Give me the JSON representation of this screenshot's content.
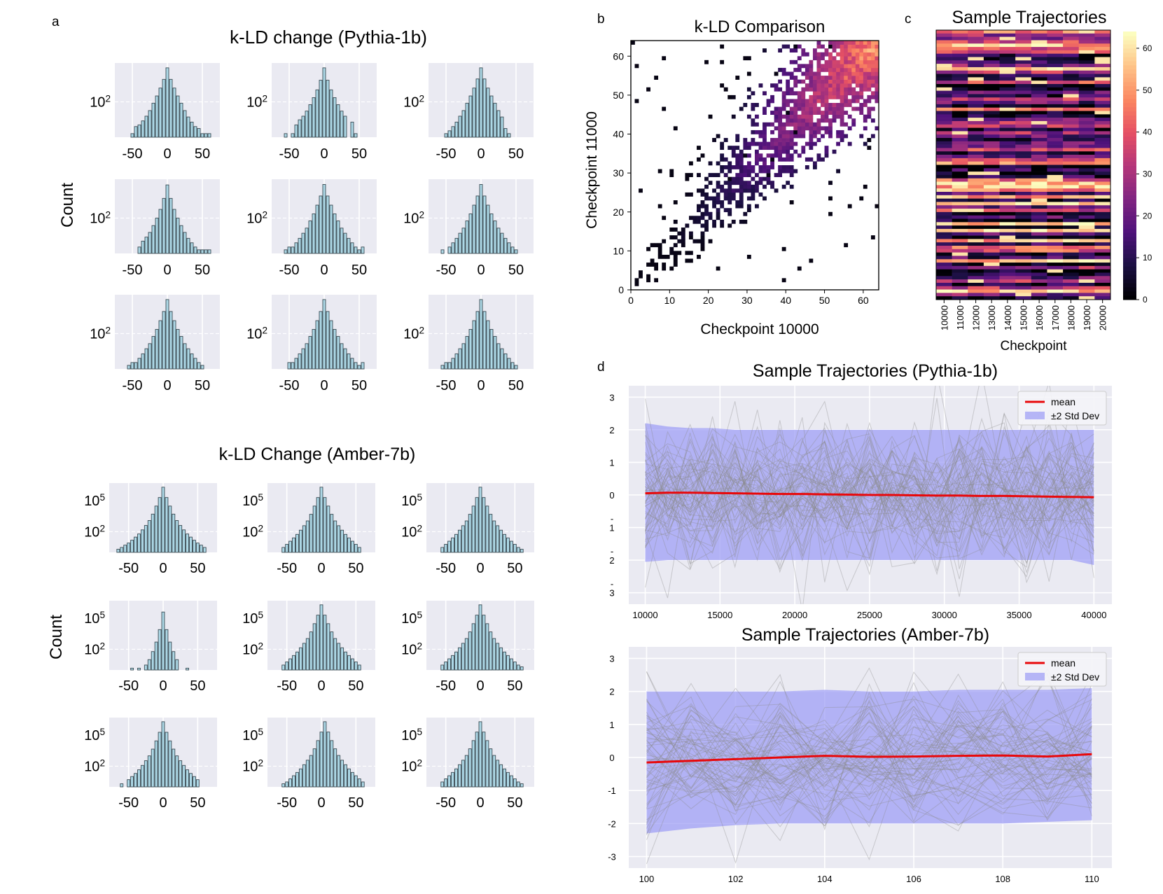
{
  "panel_letters": {
    "a": "a",
    "b": "b",
    "c": "c",
    "d": "d"
  },
  "colors": {
    "plot_bg": "#eaeaf2",
    "bar_fill": "#add8e6",
    "bar_edge": "#3a4a52",
    "mean_line": "#e8080a",
    "band": "#9c9cf5",
    "trajectory": "#8c8c8c"
  },
  "chart_data": [
    {
      "id": "pythia_hist",
      "type": "bar",
      "title": "k-LD change (Pythia-1b)",
      "ylabel": "Count",
      "yscale": "log",
      "xticks": [
        "-50",
        "0",
        "50"
      ],
      "ytick_labels": [
        "10^2"
      ],
      "bin_centers": [
        -60,
        -55,
        -50,
        -45,
        -40,
        -35,
        -30,
        -25,
        -20,
        -15,
        -10,
        -5,
        0,
        5,
        10,
        15,
        20,
        25,
        30,
        35,
        40,
        45,
        50,
        55,
        60
      ],
      "grid_layout": "3x3",
      "panels": [
        {
          "counts": [
            0,
            0,
            8,
            14,
            16,
            22,
            32,
            50,
            90,
            160,
            300,
            600,
            1500,
            600,
            300,
            160,
            90,
            50,
            30,
            20,
            14,
            12,
            8,
            8,
            8
          ]
        },
        {
          "counts": [
            0,
            8,
            0,
            8,
            16,
            24,
            32,
            48,
            80,
            140,
            260,
            560,
            1500,
            560,
            260,
            140,
            80,
            48,
            32,
            0,
            20,
            8,
            0,
            0,
            0
          ]
        },
        {
          "counts": [
            0,
            0,
            8,
            10,
            14,
            20,
            32,
            50,
            90,
            160,
            300,
            620,
            1500,
            620,
            300,
            160,
            90,
            50,
            30,
            12,
            8,
            0,
            0,
            0,
            0
          ]
        },
        {
          "counts": [
            0,
            0,
            0,
            0,
            10,
            16,
            22,
            32,
            55,
            100,
            200,
            480,
            1400,
            480,
            200,
            100,
            55,
            32,
            20,
            14,
            10,
            8,
            8,
            8,
            8
          ]
        },
        {
          "counts": [
            0,
            8,
            10,
            10,
            14,
            20,
            30,
            45,
            80,
            140,
            280,
            580,
            1450,
            580,
            280,
            140,
            80,
            45,
            30,
            20,
            14,
            10,
            8,
            10,
            0
          ]
        },
        {
          "counts": [
            0,
            8,
            0,
            10,
            14,
            20,
            30,
            45,
            80,
            140,
            280,
            580,
            1450,
            580,
            280,
            140,
            80,
            45,
            30,
            20,
            14,
            10,
            8,
            0,
            0
          ]
        },
        {
          "counts": [
            0,
            8,
            10,
            10,
            14,
            20,
            30,
            45,
            80,
            140,
            280,
            580,
            1500,
            580,
            280,
            140,
            80,
            45,
            30,
            20,
            14,
            10,
            8,
            0,
            0
          ]
        },
        {
          "counts": [
            0,
            0,
            10,
            10,
            14,
            20,
            30,
            45,
            80,
            140,
            280,
            580,
            1500,
            580,
            280,
            140,
            80,
            45,
            30,
            20,
            14,
            10,
            8,
            10,
            0
          ]
        },
        {
          "counts": [
            0,
            8,
            10,
            10,
            14,
            20,
            30,
            45,
            80,
            140,
            280,
            580,
            1500,
            580,
            280,
            140,
            80,
            45,
            30,
            20,
            14,
            10,
            8,
            0,
            0
          ]
        }
      ]
    },
    {
      "id": "amber_hist",
      "type": "bar",
      "title": "k-LD Change (Amber-7b)",
      "ylabel": "Count",
      "yscale": "log",
      "xticks": [
        "-50",
        "0",
        "50"
      ],
      "ytick_labels": [
        "10^5",
        "10^2"
      ],
      "bin_centers": [
        -65,
        -60,
        -55,
        -50,
        -45,
        -40,
        -35,
        -30,
        -25,
        -20,
        -15,
        -10,
        -5,
        0,
        5,
        10,
        15,
        20,
        25,
        30,
        35,
        40,
        45,
        50,
        55,
        60,
        65
      ],
      "grid_layout": "3x3",
      "panels": [
        {
          "counts": [
            2,
            3,
            5,
            8,
            15,
            30,
            60,
            150,
            400,
            1200,
            5000,
            30000,
            200000,
            2000000,
            200000,
            30000,
            5000,
            1200,
            400,
            150,
            60,
            30,
            15,
            8,
            5,
            3,
            0
          ]
        },
        {
          "counts": [
            0,
            0,
            3,
            6,
            12,
            25,
            55,
            140,
            380,
            1100,
            4800,
            30000,
            200000,
            2000000,
            200000,
            30000,
            4800,
            1100,
            380,
            140,
            55,
            25,
            12,
            6,
            3,
            0,
            0
          ]
        },
        {
          "counts": [
            0,
            0,
            3,
            6,
            12,
            25,
            55,
            140,
            380,
            1100,
            4800,
            30000,
            200000,
            2000000,
            200000,
            30000,
            4800,
            1100,
            380,
            140,
            55,
            25,
            12,
            6,
            3,
            2,
            0
          ]
        },
        {
          "counts": [
            0,
            0,
            0,
            0,
            1.5,
            0,
            1.5,
            0,
            3,
            10,
            60,
            500,
            8000,
            400000,
            8000,
            500,
            60,
            10,
            0,
            0,
            1.5,
            0,
            0,
            0,
            0,
            0,
            0
          ]
        },
        {
          "counts": [
            0,
            0,
            3,
            6,
            12,
            25,
            55,
            140,
            380,
            1100,
            4800,
            30000,
            200000,
            2000000,
            200000,
            30000,
            4800,
            1100,
            380,
            140,
            55,
            25,
            12,
            6,
            3,
            0,
            0
          ]
        },
        {
          "counts": [
            0,
            0,
            3,
            6,
            12,
            25,
            55,
            140,
            380,
            1100,
            4800,
            30000,
            200000,
            2000000,
            200000,
            30000,
            4800,
            1100,
            380,
            140,
            55,
            25,
            12,
            6,
            3,
            2,
            0
          ]
        },
        {
          "counts": [
            0,
            2,
            0,
            5,
            10,
            20,
            45,
            120,
            340,
            1000,
            4500,
            28000,
            190000,
            2000000,
            190000,
            28000,
            4500,
            1000,
            340,
            120,
            45,
            20,
            10,
            5,
            0,
            0,
            0
          ]
        },
        {
          "counts": [
            0,
            0,
            2,
            3,
            6,
            12,
            25,
            55,
            140,
            380,
            1100,
            4800,
            30000,
            200000,
            2000000,
            200000,
            30000,
            4800,
            1100,
            380,
            140,
            55,
            25,
            12,
            6,
            3,
            0
          ]
        },
        {
          "counts": [
            0,
            0,
            3,
            6,
            12,
            25,
            55,
            140,
            380,
            1100,
            4800,
            30000,
            200000,
            2000000,
            200000,
            30000,
            4800,
            1100,
            380,
            140,
            55,
            25,
            12,
            6,
            3,
            2,
            0
          ]
        }
      ]
    },
    {
      "id": "kld_comparison",
      "type": "heatmap",
      "title": "k-LD Comparison",
      "xlabel": "Checkpoint 10000",
      "ylabel": "Checkpoint 11000",
      "xlim": [
        0,
        64
      ],
      "ylim": [
        0,
        64
      ],
      "xticks": [
        0,
        10,
        20,
        30,
        40,
        50,
        60
      ],
      "yticks": [
        0,
        10,
        20,
        30,
        40,
        50,
        60
      ],
      "description_values": "2D count histogram concentrated along the diagonal; densest near (60,60)"
    },
    {
      "id": "sample_trajectories_heatmap",
      "type": "heatmap",
      "title": "Sample Trajectories",
      "xlabel": "Checkpoint",
      "categories": [
        "10000",
        "11000",
        "12000",
        "13000",
        "14000",
        "15000",
        "16000",
        "17000",
        "18000",
        "19000",
        "20000"
      ],
      "colorbar_ticks": [
        0,
        10,
        20,
        30,
        40,
        50,
        60
      ],
      "colorbar_range": [
        0,
        64
      ],
      "rows": 80
    },
    {
      "id": "pythia_trajectories",
      "type": "line",
      "title": "Sample Trajectories (Pythia-1b)",
      "x": [
        10000,
        11500,
        13000,
        14500,
        16000,
        17500,
        19000,
        20500,
        22000,
        23500,
        25000,
        26500,
        28000,
        29500,
        31000,
        32500,
        34000,
        35500,
        37000,
        38500,
        40000
      ],
      "xticks": [
        "10000",
        "15000",
        "20000",
        "25000",
        "30000",
        "35000",
        "40000"
      ],
      "yticks": [
        "3",
        "2",
        "1",
        "0",
        "-\n1",
        "-\n2",
        "-\n3"
      ],
      "ylim": [
        -3.35,
        3.35
      ],
      "xlim": [
        8900,
        41200
      ],
      "series": [
        {
          "name": "mean",
          "values": [
            0.05,
            0.07,
            0.07,
            0.06,
            0.05,
            0.04,
            0.03,
            0.03,
            0.02,
            0.01,
            0.0,
            0.0,
            -0.01,
            -0.02,
            -0.02,
            -0.03,
            -0.03,
            -0.04,
            -0.05,
            -0.06,
            -0.07
          ]
        },
        {
          "name": "±2 Std Dev",
          "upper": [
            2.2,
            2.1,
            2.05,
            2.05,
            2.0,
            2.0,
            2.0,
            2.0,
            2.0,
            2.0,
            2.0,
            2.0,
            2.0,
            2.0,
            2.0,
            2.0,
            2.0,
            2.0,
            2.0,
            2.0,
            2.0
          ],
          "lower": [
            -2.05,
            -2.0,
            -2.0,
            -2.0,
            -2.0,
            -2.0,
            -2.0,
            -2.0,
            -2.0,
            -2.0,
            -2.0,
            -2.0,
            -2.0,
            -2.0,
            -2.0,
            -2.0,
            -2.0,
            -2.0,
            -2.0,
            -2.0,
            -2.15
          ]
        }
      ],
      "legend": [
        "mean",
        "±2 Std Dev"
      ],
      "legend_position": "top-right",
      "n_trajectories": 60
    },
    {
      "id": "amber_trajectories",
      "type": "line",
      "title": "Sample Trajectories (Amber-7b)",
      "x": [
        100,
        101,
        102,
        103,
        104,
        105,
        106,
        107,
        108,
        109,
        110
      ],
      "xticks": [
        "100",
        "102",
        "104",
        "106",
        "108",
        "110"
      ],
      "yticks": [
        "3",
        "2",
        "1",
        "0",
        "-1",
        "-2",
        "-3"
      ],
      "ylim": [
        -3.35,
        3.35
      ],
      "xlim": [
        99.6,
        110.45
      ],
      "series": [
        {
          "name": "mean",
          "values": [
            -0.15,
            -0.1,
            -0.05,
            0.0,
            0.05,
            0.02,
            0.03,
            0.05,
            0.06,
            0.03,
            0.1
          ]
        },
        {
          "name": "±2 Std Dev",
          "upper": [
            2.0,
            2.0,
            2.0,
            2.0,
            2.05,
            2.0,
            2.0,
            2.05,
            2.05,
            2.05,
            2.1
          ],
          "lower": [
            -2.3,
            -2.15,
            -2.05,
            -2.0,
            -2.0,
            -2.0,
            -2.0,
            -2.0,
            -2.0,
            -1.95,
            -1.9
          ]
        }
      ],
      "legend": [
        "mean",
        "±2 Std Dev"
      ],
      "legend_position": "top-right",
      "n_trajectories": 60
    }
  ]
}
